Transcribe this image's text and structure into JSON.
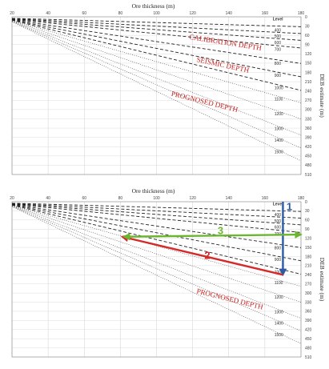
{
  "chart_data": [
    {
      "type": "line",
      "xlabel": "Ore thickness (m)",
      "ylabel": "DEB estimate (m)",
      "xlim": [
        20,
        180
      ],
      "ylim": [
        0,
        510
      ],
      "x_ticks": [
        "20",
        "40",
        "60",
        "80",
        "100",
        "120",
        "140",
        "160",
        "180"
      ],
      "y_ticks": [
        "0",
        "30",
        "60",
        "90",
        "120",
        "150",
        "180",
        "210",
        "240",
        "270",
        "300",
        "330",
        "360",
        "390",
        "420",
        "450",
        "480",
        "510"
      ],
      "legend_title": "Level",
      "levels": [
        "400",
        "500",
        "600",
        "700",
        "800",
        "900",
        "1000",
        "1100",
        "1200",
        "1300",
        "1400",
        "1500"
      ],
      "series": [
        {
          "level": 400,
          "style": "dashed",
          "x": [
            20,
            180
          ],
          "y": [
            5,
            32
          ]
        },
        {
          "level": 500,
          "style": "dashed",
          "x": [
            20,
            180
          ],
          "y": [
            6,
            54
          ]
        },
        {
          "level": 600,
          "style": "dashed",
          "x": [
            20,
            180
          ],
          "y": [
            7,
            76
          ]
        },
        {
          "level": 700,
          "style": "dashed",
          "x": [
            20,
            180
          ],
          "y": [
            8,
            101
          ]
        },
        {
          "level": 800,
          "style": "dashed",
          "x": [
            20,
            180
          ],
          "y": [
            9,
            151
          ]
        },
        {
          "level": 900,
          "style": "dashed",
          "x": [
            20,
            180
          ],
          "y": [
            10,
            194
          ]
        },
        {
          "level": 1000,
          "style": "dashed",
          "x": [
            20,
            180
          ],
          "y": [
            11,
            238
          ]
        },
        {
          "level": 1100,
          "style": "dotted",
          "x": [
            20,
            180
          ],
          "y": [
            12,
            278
          ]
        },
        {
          "level": 1200,
          "style": "dotted",
          "x": [
            20,
            180
          ],
          "y": [
            13,
            330
          ]
        },
        {
          "level": 1300,
          "style": "dotted",
          "x": [
            20,
            180
          ],
          "y": [
            14,
            383
          ]
        },
        {
          "level": 1400,
          "style": "dotted",
          "x": [
            20,
            180
          ],
          "y": [
            15,
            424
          ]
        },
        {
          "level": 1500,
          "style": "dotted",
          "x": [
            20,
            180
          ],
          "y": [
            16,
            466
          ]
        }
      ],
      "annotations": [
        {
          "text": "CALIBRATION DEPTH",
          "x": 118,
          "y": 72
        },
        {
          "text": "SEISMIC DEPTH",
          "x": 122,
          "y": 145
        },
        {
          "text": "PROGNOSED DEPTH",
          "x": 108,
          "y": 255
        }
      ],
      "arrows": [],
      "grid": true,
      "legend": "right"
    },
    {
      "type": "line",
      "xlabel": "Ore thickness (m)",
      "ylabel": "DEB estimate (m)",
      "xlim": [
        20,
        180
      ],
      "ylim": [
        0,
        510
      ],
      "x_ticks": [
        "20",
        "40",
        "60",
        "80",
        "100",
        "120",
        "140",
        "160",
        "180"
      ],
      "y_ticks": [
        "0",
        "30",
        "60",
        "90",
        "120",
        "150",
        "180",
        "210",
        "240",
        "270",
        "300",
        "330",
        "360",
        "390",
        "420",
        "450",
        "480",
        "510"
      ],
      "legend_title": "Level",
      "levels": [
        "400",
        "500",
        "600",
        "700",
        "800",
        "900",
        "1000",
        "1100",
        "1200",
        "1300",
        "1400",
        "1500"
      ],
      "series": [
        {
          "level": 400,
          "style": "dashed",
          "x": [
            20,
            180
          ],
          "y": [
            5,
            32
          ]
        },
        {
          "level": 500,
          "style": "dashed",
          "x": [
            20,
            180
          ],
          "y": [
            6,
            54
          ]
        },
        {
          "level": 600,
          "style": "dashed",
          "x": [
            20,
            180
          ],
          "y": [
            7,
            76
          ]
        },
        {
          "level": 700,
          "style": "dashed",
          "x": [
            20,
            180
          ],
          "y": [
            8,
            101
          ]
        },
        {
          "level": 800,
          "style": "dashed",
          "x": [
            20,
            180
          ],
          "y": [
            9,
            151
          ]
        },
        {
          "level": 900,
          "style": "dashed",
          "x": [
            20,
            180
          ],
          "y": [
            10,
            194
          ]
        },
        {
          "level": 1000,
          "style": "dashed",
          "x": [
            20,
            180
          ],
          "y": [
            11,
            238
          ]
        },
        {
          "level": 1100,
          "style": "dotted",
          "x": [
            20,
            180
          ],
          "y": [
            12,
            278
          ]
        },
        {
          "level": 1200,
          "style": "dotted",
          "x": [
            20,
            180
          ],
          "y": [
            13,
            330
          ]
        },
        {
          "level": 1300,
          "style": "dotted",
          "x": [
            20,
            180
          ],
          "y": [
            14,
            383
          ]
        },
        {
          "level": 1400,
          "style": "dotted",
          "x": [
            20,
            180
          ],
          "y": [
            15,
            424
          ]
        },
        {
          "level": 1500,
          "style": "dotted",
          "x": [
            20,
            180
          ],
          "y": [
            16,
            466
          ]
        }
      ],
      "annotations": [
        {
          "text": "PROGNOSED DEPTH",
          "x": 122,
          "y": 300
        }
      ],
      "arrows": [
        {
          "label": "1",
          "color": "#2a5aa8",
          "from": [
            170,
            0
          ],
          "to": [
            170,
            240
          ]
        },
        {
          "label": "2",
          "color": "#d42a2a",
          "from": [
            170,
            240
          ],
          "to": [
            81,
            115
          ]
        },
        {
          "label": "3",
          "color": "#6bb52f",
          "from": [
            82,
            115
          ],
          "to": [
            180,
            108
          ],
          "both_ends": true
        }
      ],
      "grid": true,
      "legend": "right"
    }
  ]
}
